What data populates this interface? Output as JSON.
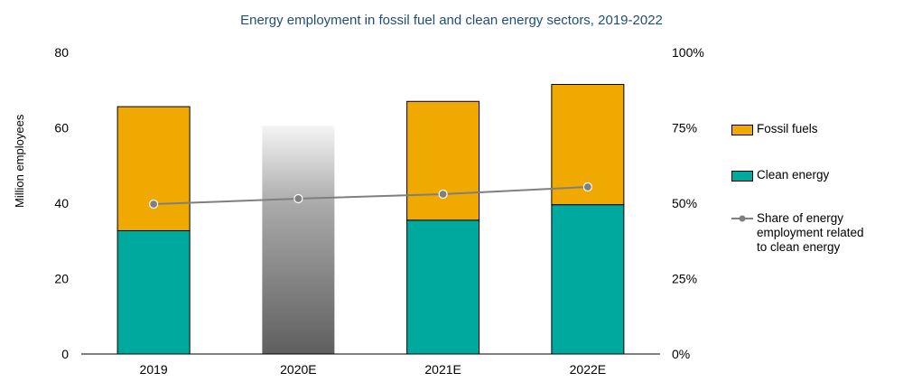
{
  "chart_data": {
    "type": "bar",
    "title": "Energy employment in fossil fuel and clean energy sectors, 2019-2022",
    "ylabel": "Million employees",
    "ylim": [
      0,
      80
    ],
    "y_ticks": [
      "0",
      "20",
      "40",
      "60",
      "80"
    ],
    "y2lim": [
      0,
      100
    ],
    "y2_ticks": [
      "0%",
      "25%",
      "50%",
      "75%",
      "100%"
    ],
    "categories": [
      "2019",
      "2020E",
      "2021E",
      "2022E"
    ],
    "stacked": true,
    "series": [
      {
        "name": "Clean energy",
        "kind": "bar",
        "color": "#00a99d",
        "values": [
          32.7,
          null,
          35.5,
          39.6
        ]
      },
      {
        "name": "Fossil fuels",
        "kind": "bar",
        "color": "#f0a900",
        "values": [
          32.9,
          null,
          31.5,
          31.9
        ]
      },
      {
        "name": "Share of energy employment related to clean energy",
        "kind": "line",
        "axis": "right",
        "color": "#7f7f7f",
        "values": [
          49.7,
          51.5,
          53.0,
          55.4
        ]
      }
    ],
    "shaded_category": {
      "category": "2020E",
      "total": 60.5,
      "style": "gradient-grey"
    },
    "legend": {
      "placement": "right",
      "items": [
        {
          "label": "Fossil fuels",
          "type": "bar",
          "color": "#f0a900"
        },
        {
          "label": "Clean energy",
          "type": "bar",
          "color": "#00a99d"
        },
        {
          "label_lines": [
            "Share of energy",
            "employment related",
            "to clean energy"
          ],
          "type": "line",
          "color": "#7f7f7f"
        }
      ]
    }
  }
}
